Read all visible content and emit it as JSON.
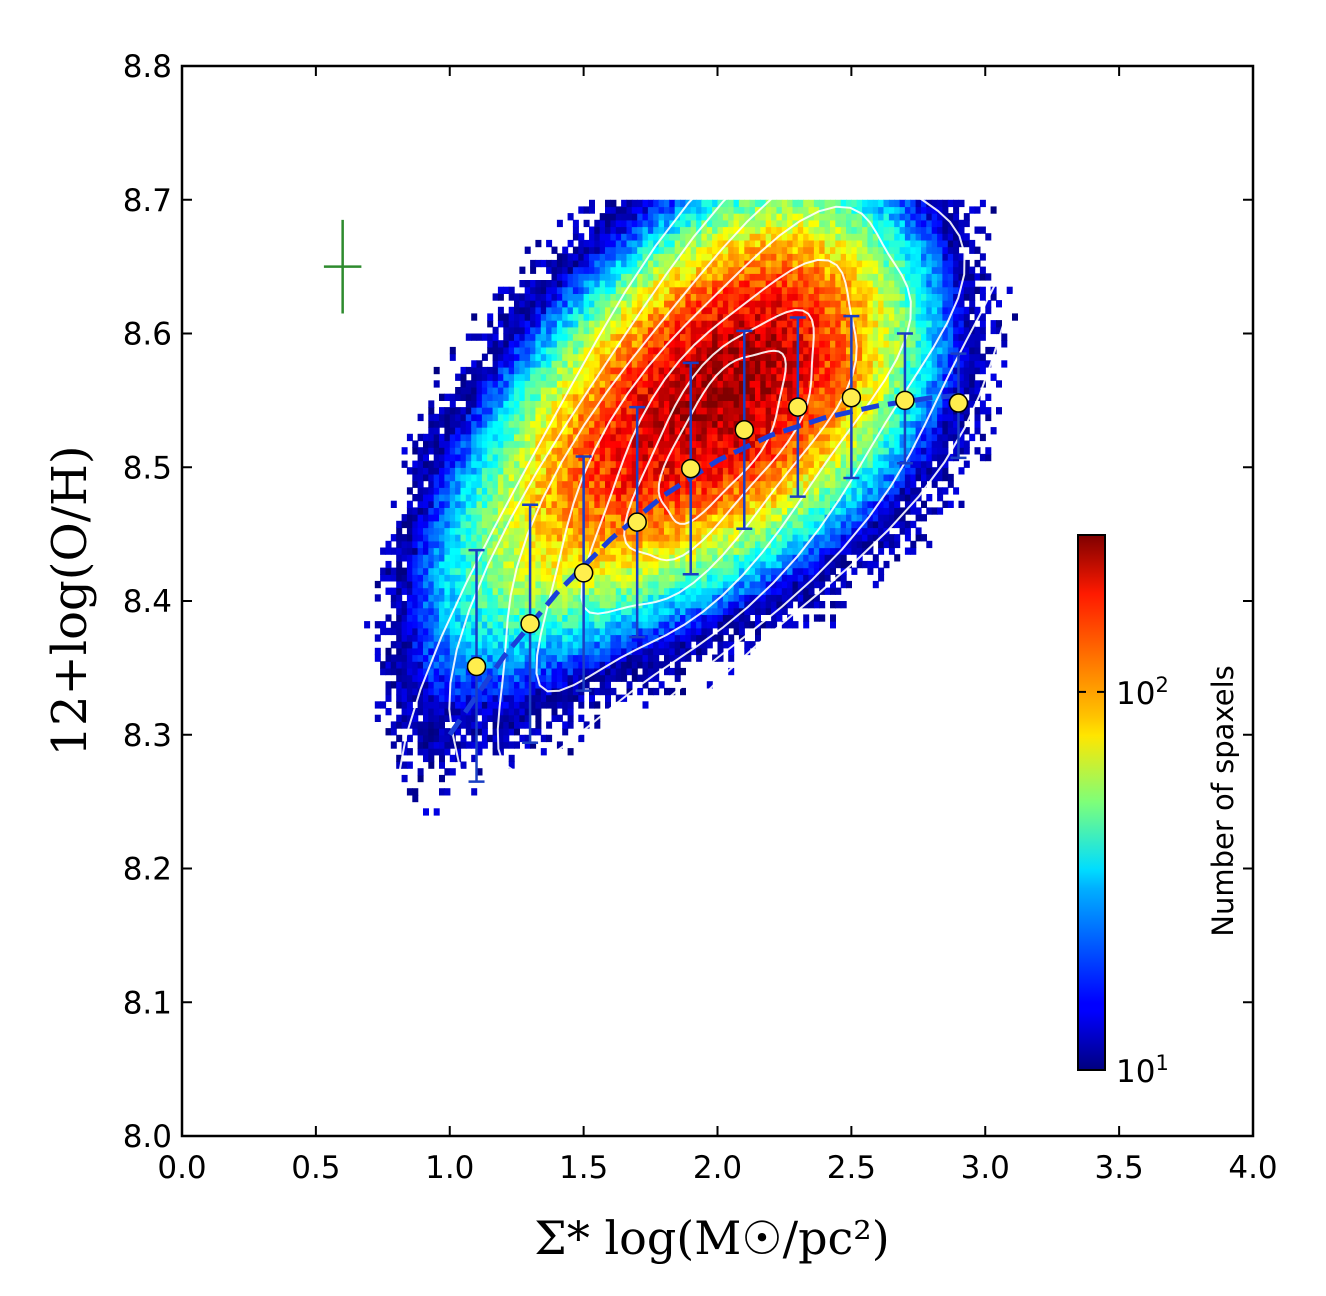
{
  "chart_data": {
    "type": "heatmap",
    "title": "",
    "xlabel": "Σ* log(M☉/pc²)",
    "ylabel": "12+log(O/H)",
    "xlim": [
      0.0,
      4.0
    ],
    "ylim": [
      8.0,
      8.8
    ],
    "x_ticks": [
      "0.0",
      "0.5",
      "1.0",
      "1.5",
      "2.0",
      "2.5",
      "3.0",
      "3.5",
      "4.0"
    ],
    "y_ticks": [
      "8.0",
      "8.1",
      "8.2",
      "8.3",
      "8.4",
      "8.5",
      "8.6",
      "8.7",
      "8.8"
    ],
    "grid": false,
    "colormap": "jet",
    "colorbar": {
      "label": "Number of spaxels",
      "scale": "log",
      "range": [
        10,
        260
      ],
      "tick_base": "10",
      "ticks": [
        {
          "value": 10,
          "exponent": "1"
        },
        {
          "value": 100,
          "exponent": "2"
        }
      ]
    },
    "density_peak": {
      "x": 2.0,
      "y": 8.52,
      "count": 250
    },
    "contour_color": "#ffffff",
    "binned_medians": {
      "name": "median",
      "marker_color": "#ffee4d",
      "errorbar_color": "#1a3fc4",
      "x": [
        1.1,
        1.3,
        1.5,
        1.7,
        1.9,
        2.1,
        2.3,
        2.5,
        2.7,
        2.9
      ],
      "y": [
        8.351,
        8.383,
        8.421,
        8.459,
        8.499,
        8.528,
        8.545,
        8.552,
        8.55,
        8.548
      ],
      "y_low": [
        8.265,
        8.294,
        8.333,
        8.373,
        8.42,
        8.454,
        8.478,
        8.492,
        8.503,
        8.507
      ],
      "y_high": [
        8.438,
        8.472,
        8.508,
        8.545,
        8.578,
        8.602,
        8.612,
        8.613,
        8.6,
        8.585
      ]
    },
    "fit": {
      "name": "fit",
      "color": "#1a3fdb",
      "style": "dashed",
      "x": [
        1.0,
        1.2,
        1.4,
        1.6,
        1.8,
        2.0,
        2.2,
        2.4,
        2.6,
        2.8,
        2.92
      ],
      "y": [
        8.3,
        8.358,
        8.406,
        8.446,
        8.479,
        8.505,
        8.524,
        8.537,
        8.546,
        8.552,
        8.554
      ]
    },
    "typical_error": {
      "color": "#2e8b2e",
      "x": 0.6,
      "y": 8.65,
      "xerr": 0.07,
      "yerr": 0.035
    }
  }
}
